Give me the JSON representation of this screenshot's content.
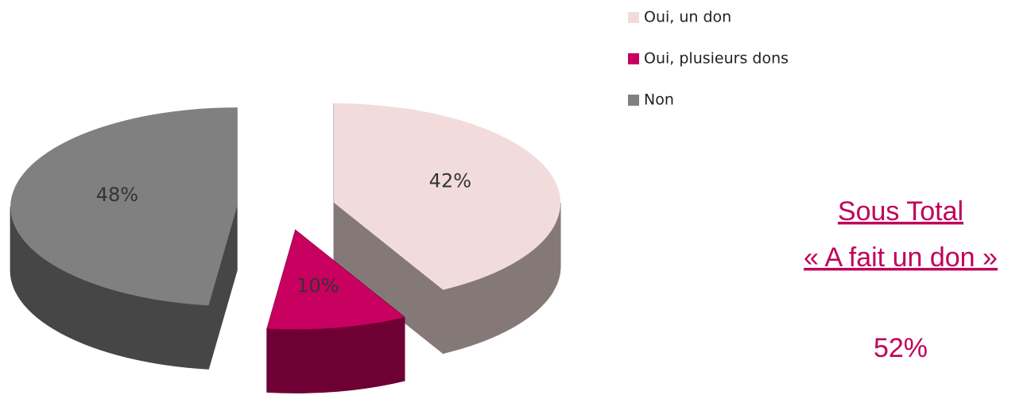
{
  "chart_data": {
    "type": "pie",
    "categories": [
      "Oui, un don",
      "Oui, plusieurs dons",
      "Non"
    ],
    "values": [
      42,
      10,
      48
    ],
    "value_labels": [
      "42%",
      "10%",
      "48%"
    ],
    "colors": [
      "#f2dcdb",
      "#c8005f",
      "#808080"
    ],
    "legend": "top-right",
    "annotation": [
      "Sous Total",
      "« A fait un don »",
      "52%"
    ]
  }
}
